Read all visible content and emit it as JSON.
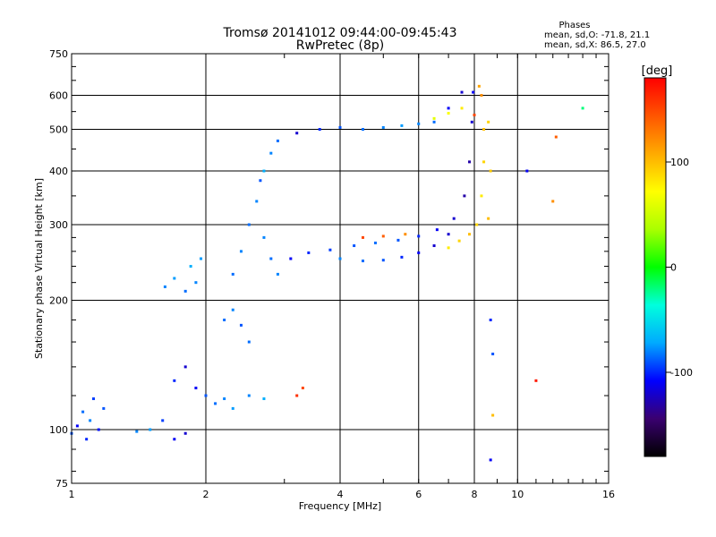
{
  "chart_data": {
    "type": "scatter",
    "title": "Tromsø 20141012 09:44:00-09:45:43",
    "subtitle": "RwPretec (8p)",
    "xlabel": "Frequency [MHz]",
    "ylabel": "Stationary phase Virtual Height [km]",
    "x_scale": "log",
    "y_scale": "log",
    "xlim": [
      1,
      16
    ],
    "ylim": [
      75,
      750
    ],
    "x_ticks": [
      1,
      2,
      4,
      6,
      8,
      10,
      16
    ],
    "y_ticks": [
      75,
      100,
      200,
      300,
      400,
      500,
      600,
      750
    ],
    "grid": true,
    "phases_header": "Phases",
    "phases_o": "mean, sd,O: -71.8, 21.1",
    "phases_x": "mean, sd,X:  86.5, 27.0",
    "colorbar": {
      "label": "[deg]",
      "range": [
        -180,
        180
      ],
      "ticks": [
        -100,
        0,
        100
      ],
      "colors": [
        "#000000",
        "#3a0070",
        "#0000ff",
        "#00aaff",
        "#00ffdd",
        "#00ff00",
        "#aaff00",
        "#ffff00",
        "#ffaa00",
        "#ff5500",
        "#ff0000"
      ]
    },
    "series": [
      {
        "points": [
          [
            1.0,
            98,
            -90
          ],
          [
            1.03,
            102,
            -110
          ],
          [
            1.06,
            110,
            -85
          ],
          [
            1.08,
            95,
            -100
          ],
          [
            1.1,
            105,
            -80
          ],
          [
            1.12,
            118,
            -95
          ],
          [
            1.15,
            100,
            -105
          ],
          [
            1.18,
            112,
            -90
          ],
          [
            1.4,
            99,
            -80
          ],
          [
            1.5,
            100,
            -75
          ],
          [
            1.6,
            105,
            -95
          ],
          [
            1.7,
            95,
            -110
          ],
          [
            1.8,
            98,
            -120
          ],
          [
            1.62,
            215,
            -80
          ],
          [
            1.7,
            225,
            -75
          ],
          [
            1.8,
            210,
            -85
          ],
          [
            1.85,
            240,
            -70
          ],
          [
            1.9,
            220,
            -80
          ],
          [
            1.95,
            250,
            -75
          ],
          [
            1.7,
            130,
            -100
          ],
          [
            1.8,
            140,
            -120
          ],
          [
            1.9,
            125,
            -110
          ],
          [
            2.0,
            120,
            -90
          ],
          [
            2.1,
            115,
            -85
          ],
          [
            2.2,
            118,
            -80
          ],
          [
            2.3,
            112,
            -75
          ],
          [
            2.5,
            120,
            -80
          ],
          [
            2.7,
            118,
            -70
          ],
          [
            2.2,
            180,
            -85
          ],
          [
            2.3,
            190,
            -80
          ],
          [
            2.4,
            175,
            -90
          ],
          [
            2.5,
            160,
            -85
          ],
          [
            2.3,
            230,
            -85
          ],
          [
            2.4,
            260,
            -80
          ],
          [
            2.5,
            300,
            -85
          ],
          [
            2.6,
            340,
            -80
          ],
          [
            2.65,
            380,
            -90
          ],
          [
            2.7,
            280,
            -80
          ],
          [
            2.8,
            250,
            -85
          ],
          [
            2.9,
            230,
            -80
          ],
          [
            2.7,
            400,
            -70
          ],
          [
            2.8,
            440,
            -80
          ],
          [
            2.9,
            470,
            -85
          ],
          [
            3.2,
            490,
            -120
          ],
          [
            3.6,
            500,
            -100
          ],
          [
            4.0,
            505,
            -90
          ],
          [
            4.5,
            500,
            -85
          ],
          [
            5.0,
            505,
            -80
          ],
          [
            5.5,
            510,
            -75
          ],
          [
            6.0,
            515,
            -80
          ],
          [
            6.5,
            520,
            -85
          ],
          [
            7.0,
            560,
            -110
          ],
          [
            7.5,
            610,
            -120
          ],
          [
            3.1,
            250,
            -110
          ],
          [
            3.4,
            258,
            -100
          ],
          [
            3.8,
            262,
            -95
          ],
          [
            4.3,
            268,
            -90
          ],
          [
            4.8,
            272,
            -85
          ],
          [
            5.4,
            276,
            -90
          ],
          [
            6.0,
            282,
            -100
          ],
          [
            6.6,
            292,
            -110
          ],
          [
            7.2,
            310,
            -120
          ],
          [
            7.6,
            350,
            -130
          ],
          [
            7.8,
            420,
            -130
          ],
          [
            7.9,
            520,
            -120
          ],
          [
            7.95,
            610,
            -110
          ],
          [
            4.0,
            250,
            -80
          ],
          [
            4.5,
            247,
            -85
          ],
          [
            5.0,
            248,
            -90
          ],
          [
            5.5,
            252,
            -100
          ],
          [
            6.0,
            258,
            -110
          ],
          [
            6.5,
            268,
            -120
          ],
          [
            7.0,
            285,
            -120
          ],
          [
            3.2,
            120,
            160
          ],
          [
            3.3,
            125,
            150
          ],
          [
            4.5,
            280,
            150
          ],
          [
            5.0,
            282,
            140
          ],
          [
            5.6,
            285,
            120
          ],
          [
            7.0,
            265,
            80
          ],
          [
            7.4,
            275,
            90
          ],
          [
            7.8,
            285,
            100
          ],
          [
            8.1,
            300,
            90
          ],
          [
            8.3,
            350,
            80
          ],
          [
            8.4,
            420,
            90
          ],
          [
            8.4,
            500,
            100
          ],
          [
            8.3,
            600,
            120
          ],
          [
            8.2,
            630,
            110
          ],
          [
            8.6,
            310,
            100
          ],
          [
            8.7,
            400,
            95
          ],
          [
            8.6,
            520,
            90
          ],
          [
            6.5,
            530,
            60
          ],
          [
            7.0,
            545,
            70
          ],
          [
            7.5,
            560,
            80
          ],
          [
            8.0,
            540,
            150
          ],
          [
            8.7,
            180,
            -100
          ],
          [
            8.8,
            150,
            -90
          ],
          [
            8.7,
            85,
            -110
          ],
          [
            8.8,
            108,
            100
          ],
          [
            10.5,
            400,
            -110
          ],
          [
            11.0,
            130,
            170
          ],
          [
            12.2,
            480,
            140
          ],
          [
            12.0,
            340,
            120
          ],
          [
            14.0,
            560,
            -20
          ]
        ]
      }
    ]
  }
}
